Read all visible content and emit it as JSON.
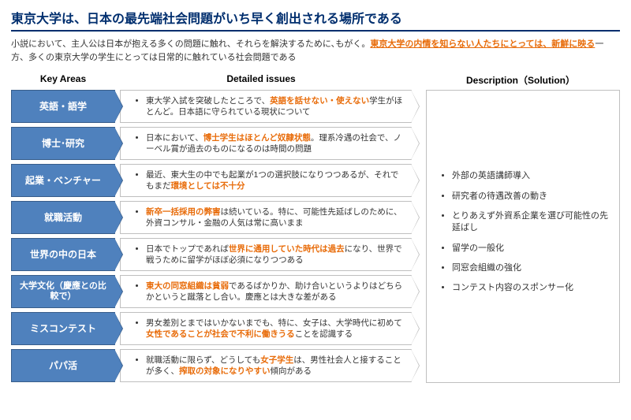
{
  "title": "東京大学は、日本の最先端社会問題がいち早く創出される場所である",
  "subtitle_a": "小説において、主人公は日本が抱える多くの問題に触れ、それらを解決するために､もがく。",
  "subtitle_hl": "東京大学の内情を知らない人たちにとっては、新鮮に映る",
  "subtitle_b": "一方、多くの東京大学の学生にとっては日常的に触れている社会問題である",
  "headers": {
    "key": "Key Areas",
    "detail": "Detailed issues",
    "desc": "Description（Solution）"
  },
  "rows": [
    {
      "key": "英語・語学",
      "d_a": "東大学入試を突破したところで、",
      "d_hl": "英語を話せない・使えない",
      "d_b": "学生がほとんど。日本語に守られている現状について"
    },
    {
      "key": "博士･研究",
      "d_a": "日本において、",
      "d_hl": "博士学生はほとんど奴隷状態",
      "d_b": "。理系冷遇の社会で、ノーベル賞が過去のものになるのは時間の問題"
    },
    {
      "key": "起業・ベンチャー",
      "d_a": "最近、東大生の中でも起業が1つの選択肢になりつつあるが、それでもまだ",
      "d_hl": "環境としては不十分",
      "d_b": ""
    },
    {
      "key": "就職活動",
      "d_a": "",
      "d_hl": "新卒一括採用の弊害",
      "d_b": "は続いている。特に、可能性先延ばしのために、外資コンサル・金融の人気は常に高いまま"
    },
    {
      "key": "世界の中の日本",
      "d_a": "日本でトップであれば",
      "d_hl": "世界に通用していた時代は過去",
      "d_b": "になり、世界で戦うために留学がほぼ必須になりつつある"
    },
    {
      "key": "大学文化（慶應との比較で）",
      "d_a": "",
      "d_hl": "東大の同窓組織は貧弱",
      "d_b": "であるばかりか、助け合いというよりはどちらかというと蹴落とし合い。慶應とは大きな差がある"
    },
    {
      "key": "ミスコンテスト",
      "d_a": "男女差別とまではいかないまでも、特に、女子は、大学時代に初めて",
      "d_hl": "女性であることが社会で不利に働きうる",
      "d_b": "ことを認識する"
    },
    {
      "key": "パパ活",
      "d_a": "就職活動に限らず、どうしても",
      "d_hl": "女子学生",
      "d_b": "は、男性社会人と接することが多く、",
      "d_hl2": "搾取の対象になりやすい",
      "d_c": "傾向がある"
    }
  ],
  "solutions": [
    "外部の英語講師導入",
    "研究者の待遇改善の動き",
    "とりあえず外資系企業を選び可能性の先延ばし",
    "留学の一般化",
    "同窓会組織の強化",
    "コンテスト内容のスポンサー化"
  ]
}
